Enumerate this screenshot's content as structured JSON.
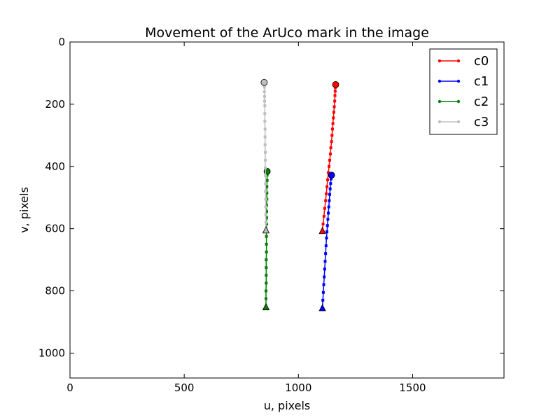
{
  "chart_data": {
    "type": "line",
    "title": "Movement of the ArUco mark in the image",
    "xlabel": "u, pixels",
    "ylabel": "v, pixels",
    "xlim": [
      0,
      1900
    ],
    "ylim": [
      1080,
      0
    ],
    "y_inverted": true,
    "xticks": [
      0,
      500,
      1000,
      1500
    ],
    "yticks": [
      0,
      200,
      400,
      600,
      800,
      1000
    ],
    "grid": false,
    "legend_position": "top-right",
    "series": [
      {
        "name": "c0",
        "color": "#ff0000",
        "start_marker": "triangle",
        "end_marker": "circle",
        "x": [
          1105,
          1108,
          1112,
          1115,
          1119,
          1122,
          1125,
          1128,
          1131,
          1134,
          1137,
          1140,
          1142,
          1145,
          1147,
          1149,
          1151,
          1153,
          1155,
          1157,
          1159,
          1160,
          1161,
          1162,
          1163
        ],
        "y": [
          607,
          585,
          560,
          535,
          510,
          488,
          465,
          443,
          420,
          400,
          380,
          360,
          340,
          320,
          300,
          280,
          262,
          244,
          226,
          208,
          190,
          172,
          158,
          146,
          137
        ]
      },
      {
        "name": "c1",
        "color": "#0000ff",
        "start_marker": "triangle",
        "end_marker": "circle",
        "x": [
          1105,
          1107,
          1109,
          1111,
          1113,
          1115,
          1117,
          1119,
          1121,
          1123,
          1125,
          1127,
          1129,
          1131,
          1133,
          1135,
          1137,
          1139,
          1141,
          1143,
          1145
        ],
        "y": [
          855,
          830,
          805,
          780,
          755,
          730,
          705,
          680,
          655,
          630,
          610,
          590,
          570,
          550,
          530,
          510,
          490,
          472,
          455,
          440,
          428
        ]
      },
      {
        "name": "c2",
        "color": "#008000",
        "start_marker": "triangle",
        "end_marker": "circle",
        "x": [
          858,
          858,
          858,
          859,
          859,
          859,
          859,
          860,
          860,
          860,
          860,
          861,
          861,
          861,
          861,
          862,
          862,
          862,
          863,
          863,
          863
        ],
        "y": [
          852,
          825,
          800,
          775,
          750,
          725,
          700,
          675,
          650,
          625,
          605,
          585,
          565,
          545,
          525,
          505,
          485,
          465,
          445,
          428,
          416
        ]
      },
      {
        "name": "c3",
        "color": "#bfbfbf",
        "start_marker": "triangle",
        "end_marker": "circle",
        "x": [
          858,
          858,
          857,
          857,
          857,
          856,
          856,
          856,
          855,
          855,
          855,
          854,
          854,
          854,
          853,
          853,
          853,
          852,
          852,
          851,
          851,
          850
        ],
        "y": [
          605,
          580,
          555,
          530,
          505,
          480,
          455,
          430,
          405,
          380,
          355,
          330,
          305,
          280,
          255,
          230,
          205,
          190,
          175,
          160,
          145,
          130
        ]
      }
    ]
  }
}
